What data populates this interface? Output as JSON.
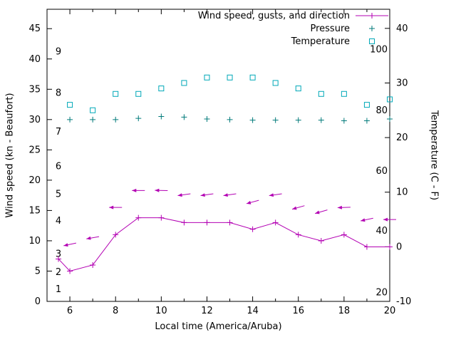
{
  "colors": {
    "wind": "#b300b3",
    "pressure": "#007a7a",
    "temperature": "#00a8b8",
    "axis": "#000000",
    "background": "#ffffff"
  },
  "legend": [
    {
      "label": "Wind speed, gusts, and direction",
      "series": "wind"
    },
    {
      "label": "Pressure",
      "series": "pressure"
    },
    {
      "label": "Temperature",
      "series": "temperature"
    }
  ],
  "chart_data": {
    "type": "line",
    "grid": false,
    "legend_position": "top-right",
    "x_axis": {
      "label": "Local time (America/Aruba)",
      "range": [
        5,
        20
      ],
      "major_ticks": [
        6,
        8,
        10,
        12,
        14,
        16,
        18,
        20
      ],
      "minor_ticks": [
        5,
        7,
        9,
        11,
        13,
        15,
        17,
        19
      ]
    },
    "y_axis_left": {
      "label": "Wind speed (kn - Beaufort)",
      "range": [
        0,
        48.2
      ],
      "ticks": [
        0,
        5,
        10,
        15,
        20,
        25,
        30,
        35,
        40,
        45
      ],
      "beaufort_labels": [
        {
          "text": "1",
          "kn": 2.0
        },
        {
          "text": "2",
          "kn": 4.8
        },
        {
          "text": "3",
          "kn": 7.8
        },
        {
          "text": "4",
          "kn": 13.3
        },
        {
          "text": "5",
          "kn": 17.7
        },
        {
          "text": "6",
          "kn": 22.3
        },
        {
          "text": "7",
          "kn": 28.0
        },
        {
          "text": "8",
          "kn": 34.4
        },
        {
          "text": "9",
          "kn": 41.2
        }
      ]
    },
    "y_axis_right": {
      "label": "Temperature (C - F)",
      "range": [
        -10,
        43.5
      ],
      "ticks": [
        -10,
        0,
        10,
        20,
        30,
        40
      ],
      "fahrenheit_labels": [
        {
          "text": "20",
          "c": -8.4
        },
        {
          "text": "40",
          "c": 2.9
        },
        {
          "text": "60",
          "c": 13.9
        },
        {
          "text": "80",
          "c": 25.0
        },
        {
          "text": "100",
          "c": 36.1
        }
      ]
    },
    "series": [
      {
        "name": "Wind speed, gusts, and direction",
        "type": "line",
        "axis": "left",
        "color_key": "wind",
        "x": [
          5.5,
          6,
          7,
          8,
          9,
          10,
          11,
          12,
          13,
          14,
          15,
          16,
          17,
          18,
          19,
          20
        ],
        "values": [
          7,
          5,
          6,
          11,
          13.8,
          13.8,
          13,
          13,
          13,
          11.9,
          13,
          11,
          10,
          11,
          9,
          9
        ]
      },
      {
        "name": "Wind gusts (direction arrows)",
        "type": "vector",
        "axis": "left",
        "color_key": "wind",
        "x": [
          6,
          7,
          8,
          9,
          10,
          11,
          12,
          13,
          14,
          15,
          16,
          17,
          18,
          19,
          20
        ],
        "values": [
          9.4,
          10.5,
          15.5,
          18.3,
          18.3,
          17.6,
          17.6,
          17.6,
          16.4,
          17.6,
          15.5,
          14.8,
          15.5,
          13.5,
          13.5
        ],
        "screen_angles_deg": [
          168,
          170,
          180,
          180,
          181,
          172,
          172,
          172,
          165,
          172,
          164,
          164,
          178,
          168,
          180
        ]
      },
      {
        "name": "Pressure",
        "type": "points-plus",
        "axis": "left",
        "color_key": "pressure",
        "x": [
          6,
          7,
          8,
          9,
          10,
          11,
          12,
          13,
          14,
          15,
          16,
          17,
          18,
          19,
          20
        ],
        "values": [
          30.0,
          30.0,
          30.0,
          30.2,
          30.5,
          30.4,
          30.1,
          30.0,
          29.9,
          29.9,
          29.9,
          29.9,
          29.8,
          29.8,
          30.1
        ]
      },
      {
        "name": "Temperature",
        "type": "points-square",
        "axis": "right",
        "color_key": "temperature",
        "x": [
          6,
          7,
          8,
          9,
          10,
          11,
          12,
          13,
          14,
          15,
          16,
          17,
          18,
          19,
          20
        ],
        "values": [
          26,
          25,
          28,
          28,
          29,
          30,
          31,
          31,
          31,
          30,
          29,
          28,
          28,
          26,
          27
        ]
      }
    ]
  }
}
